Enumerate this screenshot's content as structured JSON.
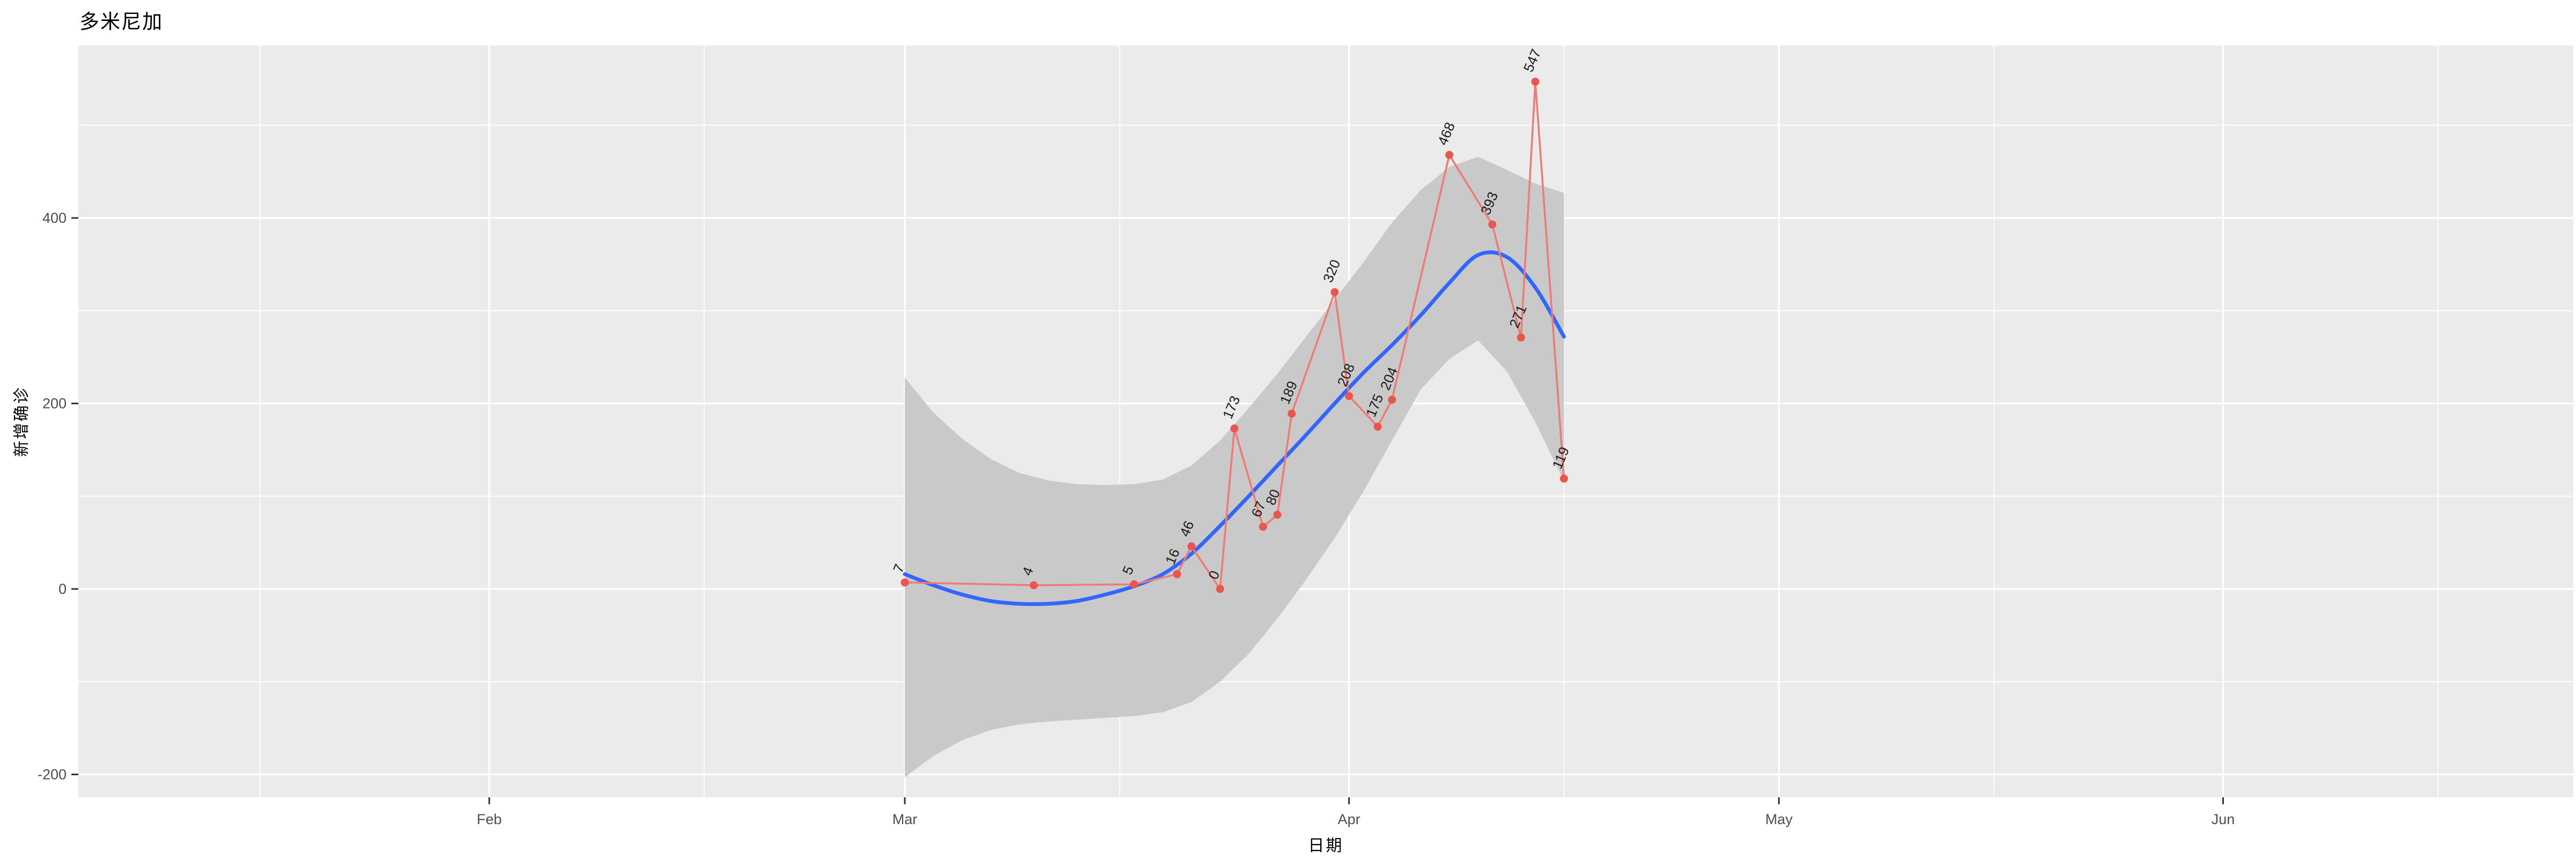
{
  "title": "多米尼加",
  "colors": {
    "page_background": "#FFFFFF",
    "panel_background": "#EBEBEB",
    "grid": "#FFFFFF",
    "band": "#C9C9C9",
    "smooth_line": "#3366FF",
    "data_line": "#F07973",
    "data_point": "#E8564E",
    "point_label": "#1A1A1A",
    "tick_text": "#4D4D4D",
    "tick_mark": "#333333"
  },
  "chart_data": {
    "type": "line",
    "title": "多米尼加",
    "xlabel": "日期",
    "ylabel": "新增确诊",
    "grid": "white major and minor gridlines on gray panel (ggplot style)",
    "legend_position": "none",
    "x_axis": {
      "unit": "date, day 0 = Mar 1",
      "major_ticks": [
        {
          "label": "Feb",
          "day": -29
        },
        {
          "label": "Mar",
          "day": 0
        },
        {
          "label": "Apr",
          "day": 31
        },
        {
          "label": "May",
          "day": 61
        },
        {
          "label": "Jun",
          "day": 92
        }
      ],
      "minor_tick_days": [
        -45,
        -14,
        15,
        46,
        76,
        107
      ]
    },
    "y_axis": {
      "major_ticks": [
        {
          "label": "400",
          "value": 400
        },
        {
          "label": "200",
          "value": 200
        },
        {
          "label": "0",
          "value": 0
        },
        {
          "label": "-200",
          "value": -200
        }
      ],
      "minor_tick_values": [
        500,
        300,
        100,
        -100
      ],
      "range_shown": [
        -225,
        586
      ]
    },
    "series": {
      "daily_new_confirmed": {
        "style": "red line with points and rotated value labels",
        "points": [
          {
            "date_est": "Mar 1",
            "day": 0,
            "value": 7
          },
          {
            "date_est": "Mar 10",
            "day": 9,
            "value": 4
          },
          {
            "date_est": "Mar 17",
            "day": 16,
            "value": 5
          },
          {
            "date_est": "Mar 20",
            "day": 19,
            "value": 16
          },
          {
            "date_est": "Mar 21",
            "day": 20,
            "value": 46
          },
          {
            "date_est": "Mar 23",
            "day": 22,
            "value": 0
          },
          {
            "date_est": "Mar 24",
            "day": 23,
            "value": 173
          },
          {
            "date_est": "Mar 26",
            "day": 25,
            "value": 67
          },
          {
            "date_est": "Mar 27",
            "day": 26,
            "value": 80
          },
          {
            "date_est": "Mar 28",
            "day": 27,
            "value": 189
          },
          {
            "date_est": "Mar 31",
            "day": 30,
            "value": 320
          },
          {
            "date_est": "Apr 1",
            "day": 31,
            "value": 208
          },
          {
            "date_est": "Apr 3",
            "day": 33,
            "value": 175
          },
          {
            "date_est": "Apr 4",
            "day": 34,
            "value": 204
          },
          {
            "date_est": "Apr 8",
            "day": 38,
            "value": 468
          },
          {
            "date_est": "Apr 11",
            "day": 41,
            "value": 393
          },
          {
            "date_est": "Apr 13",
            "day": 43,
            "value": 271
          },
          {
            "date_est": "Apr 14",
            "day": 44,
            "value": 547
          },
          {
            "date_est": "Apr 16",
            "day": 46,
            "value": 119
          }
        ]
      },
      "loess_smooth": {
        "style": "blue smoothed trend line",
        "days": [
          0,
          2,
          4,
          6,
          8,
          10,
          12,
          14,
          16,
          18,
          20,
          22,
          24,
          26,
          28,
          30,
          32,
          34,
          36,
          38,
          40,
          42,
          44,
          46
        ],
        "values": [
          16,
          4,
          -6,
          -13,
          -16,
          -16,
          -13,
          -6,
          3,
          16,
          38,
          68,
          100,
          133,
          166,
          200,
          233,
          263,
          295,
          330,
          360,
          358,
          325,
          272
        ]
      },
      "confidence_band": {
        "style": "gray confidence ribbon around smooth line",
        "days": [
          0,
          2,
          4,
          6,
          8,
          10,
          12,
          14,
          16,
          18,
          20,
          22,
          24,
          26,
          28,
          30,
          32,
          34,
          36,
          38,
          40,
          42,
          44,
          46
        ],
        "upper": [
          228,
          190,
          162,
          140,
          125,
          117,
          113,
          112,
          113,
          118,
          133,
          160,
          195,
          232,
          272,
          312,
          352,
          395,
          430,
          455,
          466,
          452,
          437,
          427
        ],
        "lower": [
          -203,
          -180,
          -163,
          -152,
          -146,
          -143,
          -141,
          -139,
          -137,
          -133,
          -122,
          -100,
          -70,
          -32,
          10,
          55,
          105,
          160,
          215,
          248,
          268,
          235,
          180,
          116
        ]
      }
    }
  }
}
